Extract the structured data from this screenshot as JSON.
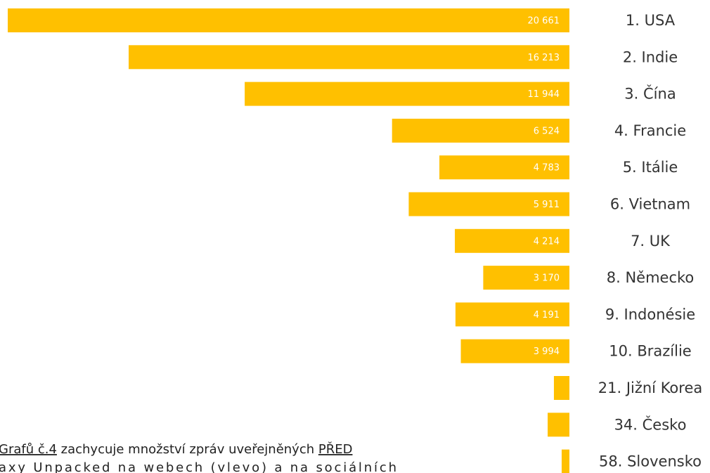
{
  "chart_data": {
    "type": "bar",
    "orientation": "horizontal",
    "categories": [
      "1. USA",
      "2. Indie",
      "3. Čína",
      "4. Francie",
      "5. Itálie",
      "6. Vietnam",
      "7. UK",
      "8. Německo",
      "9. Indonésie",
      "10. Brazílie",
      "21. Jižní Korea",
      "34. Česko",
      "58. Slovensko"
    ],
    "values": [
      20661,
      16213,
      11944,
      6524,
      4783,
      5911,
      4214,
      3170,
      4191,
      3994,
      570,
      800,
      285
    ],
    "value_labels": [
      "20 661",
      "16 213",
      "11 944",
      "6 524",
      "4 783",
      "5 911",
      "4 214",
      "3 170",
      "4 191",
      "3 994",
      null,
      null,
      null
    ],
    "color": "#ffc000",
    "xlim": [
      0,
      20700
    ],
    "annotations": [
      [
        "Grafů č.4",
        " zachycuje množství zpráv uveřejněných ",
        "PŘED"
      ],
      [
        "axy Unpacked na webech (vlevo) a na sociálních"
      ]
    ]
  }
}
